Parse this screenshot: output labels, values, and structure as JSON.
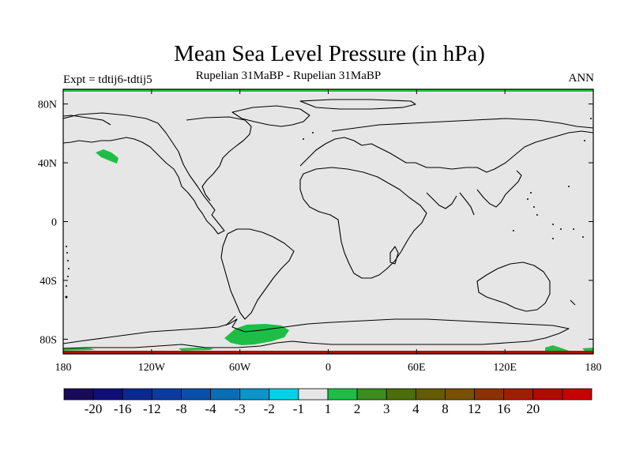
{
  "title": "Mean Sea Level Pressure (in hPa)",
  "subtitle": "Rupelian  31MaBP - Rupelian  31MaBP",
  "left_label": "Expt = tdtij6-tdtij5",
  "right_label": "ANN",
  "map": {
    "projection": "cylindrical equidistant",
    "lon_range": [
      -180,
      180
    ],
    "lat_range": [
      -90,
      90
    ],
    "background_color": "#e6e6e6",
    "coastline_color": "#000000",
    "lat_ticks": [
      {
        "value": 80,
        "label": "80N"
      },
      {
        "value": 40,
        "label": "40N"
      },
      {
        "value": 0,
        "label": "0"
      },
      {
        "value": -40,
        "label": "40S"
      },
      {
        "value": -80,
        "label": "80S"
      }
    ],
    "lon_ticks": [
      {
        "value": -180,
        "label": "180"
      },
      {
        "value": -120,
        "label": "120W"
      },
      {
        "value": -60,
        "label": "60W"
      },
      {
        "value": 0,
        "label": "0"
      },
      {
        "value": 60,
        "label": "60E"
      },
      {
        "value": 120,
        "label": "120E"
      },
      {
        "value": 180,
        "label": "180"
      }
    ]
  },
  "colorbar": {
    "colors": [
      "#1a0a5a",
      "#0f0f78",
      "#0a2890",
      "#0a3ca0",
      "#0a50aa",
      "#0a6eb4",
      "#0a96c8",
      "#00d2e6",
      "#e6e6e6",
      "#1ebe46",
      "#3c8c1e",
      "#4b6e0a",
      "#645a00",
      "#785000",
      "#8c3200",
      "#a01e00",
      "#b40a00",
      "#c80000"
    ],
    "labels": [
      "-20",
      "-16",
      "-12",
      "-8",
      "-4",
      "-3",
      "-2",
      "-1",
      "1",
      "2",
      "3",
      "4",
      "8",
      "12",
      "16",
      "20"
    ]
  }
}
